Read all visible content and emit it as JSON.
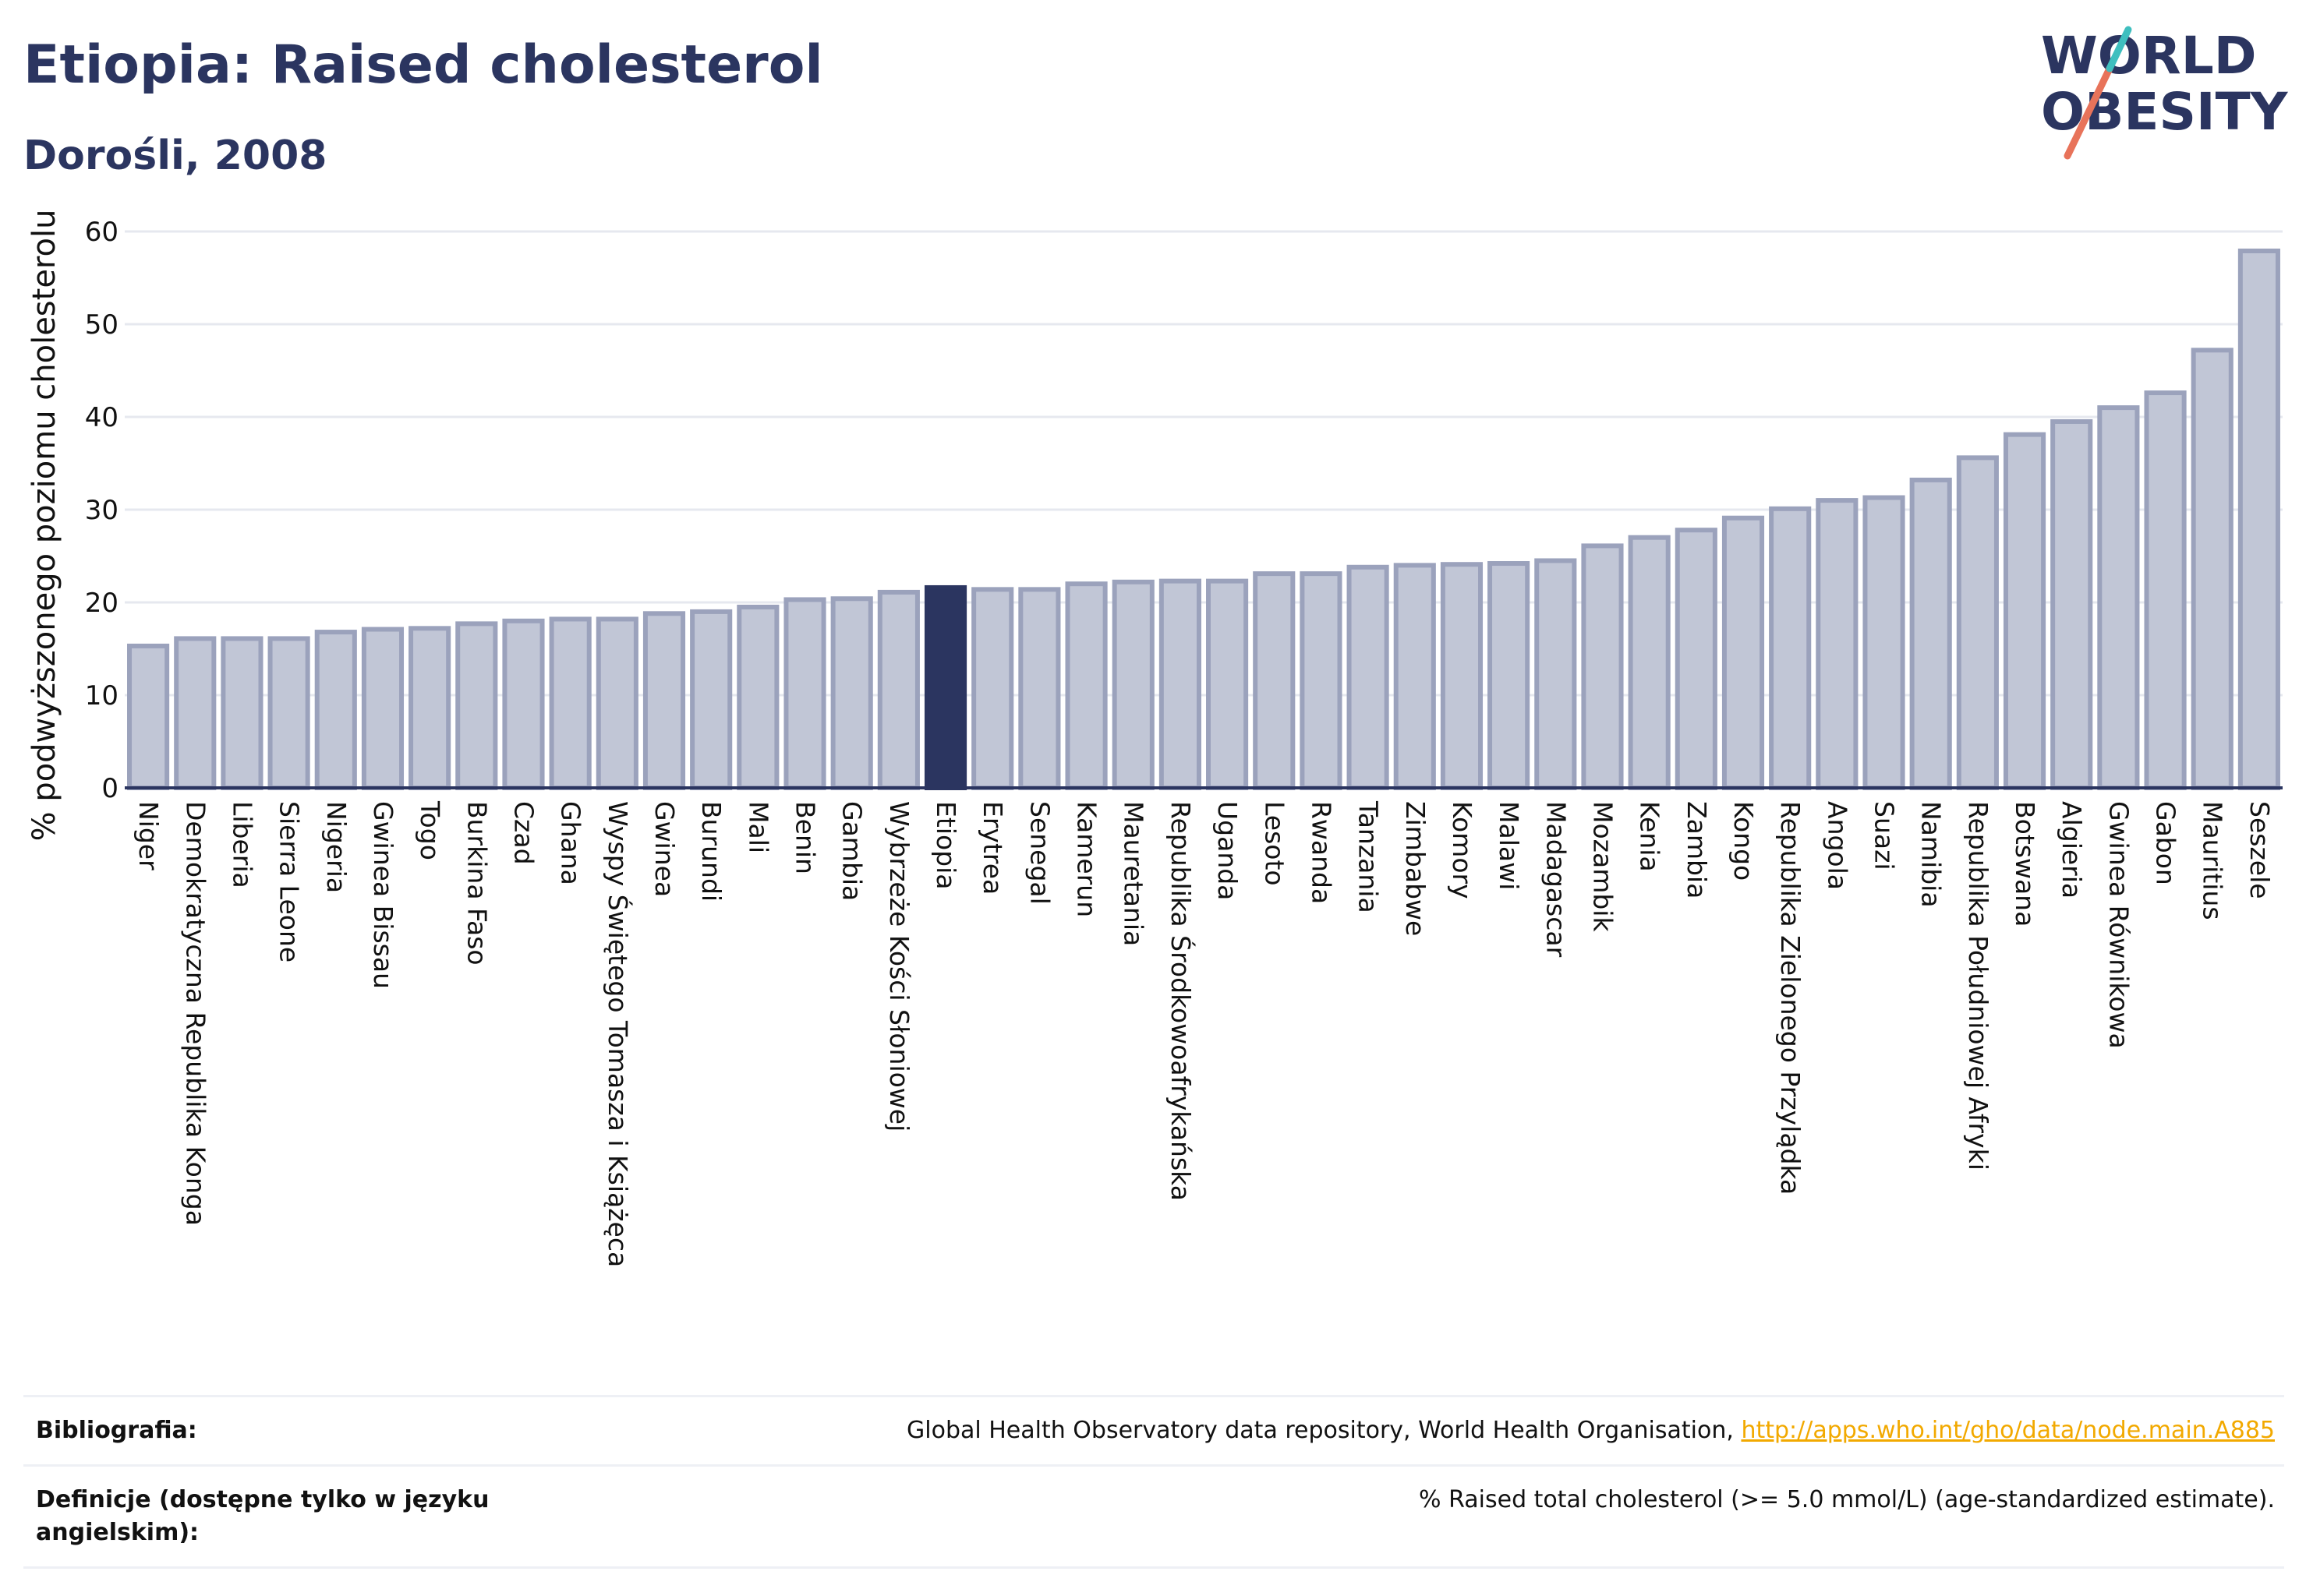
{
  "header": {
    "title": "Etiopia: Raised cholesterol",
    "subtitle": "Dorośli, 2008"
  },
  "logo": {
    "line1": "WORLD",
    "line2": "OBESITY",
    "accent_colors": [
      "#e8735a",
      "#3fbfbf"
    ]
  },
  "colors": {
    "bar": "#c1c6d6",
    "bar_stroke": "#9ba2bc",
    "highlight": "#2b3560",
    "grid": "#e6e8ef",
    "axis": "#2b3560"
  },
  "chart_data": {
    "type": "bar",
    "ylabel": "% podwyższonego poziomu cholesterolu",
    "xlabel": "",
    "ylim": [
      0,
      60
    ],
    "yticks": [
      0,
      10,
      20,
      30,
      40,
      50,
      60
    ],
    "grid": true,
    "highlight": "Etiopia",
    "categories": [
      "Niger",
      "Demokratyczna Republika Konga",
      "Liberia",
      "Sierra Leone",
      "Nigeria",
      "Gwinea Bissau",
      "Togo",
      "Burkina Faso",
      "Czad",
      "Ghana",
      "Wyspy Świętego Tomasza i Książęca",
      "Gwinea",
      "Burundi",
      "Mali",
      "Benin",
      "Gambia",
      "Wybrzeże Kości Słoniowej",
      "Etiopia",
      "Erytrea",
      "Senegal",
      "Kamerun",
      "Mauretania",
      "Republika Środkowoafrykańska",
      "Uganda",
      "Lesoto",
      "Rwanda",
      "Tanzania",
      "Zimbabwe",
      "Komory",
      "Malawi",
      "Madagascar",
      "Mozambik",
      "Kenia",
      "Zambia",
      "Kongo",
      "Republika Zielonego Przylądka",
      "Angola",
      "Suazi",
      "Namibia",
      "Republika Południowej Afryki",
      "Botswana",
      "Algieria",
      "Gwinea Równikowa",
      "Gabon",
      "Mauritius",
      "Seszele"
    ],
    "values": [
      15.3,
      16.1,
      16.1,
      16.1,
      16.8,
      17.1,
      17.2,
      17.7,
      18.0,
      18.2,
      18.2,
      18.8,
      19.0,
      19.5,
      20.3,
      20.4,
      21.1,
      21.6,
      21.4,
      21.4,
      22.0,
      22.2,
      22.3,
      22.3,
      23.1,
      23.1,
      23.8,
      24.0,
      24.1,
      24.2,
      24.5,
      26.1,
      27.0,
      27.8,
      29.1,
      30.1,
      31.0,
      31.3,
      33.2,
      35.6,
      38.1,
      39.5,
      41.0,
      42.6,
      47.2,
      57.9
    ]
  },
  "references": [
    {
      "label": "Bibliografia:",
      "text": "Global Health Observatory data repository, World Health Organisation, ",
      "link": "http://apps.who.int/gho/data/node.main.A885"
    },
    {
      "label": "Definicje (dostępne tylko w języku angielskim):",
      "text": "% Raised total cholesterol (>= 5.0 mmol/L) (age-standardized estimate).",
      "link": ""
    }
  ]
}
